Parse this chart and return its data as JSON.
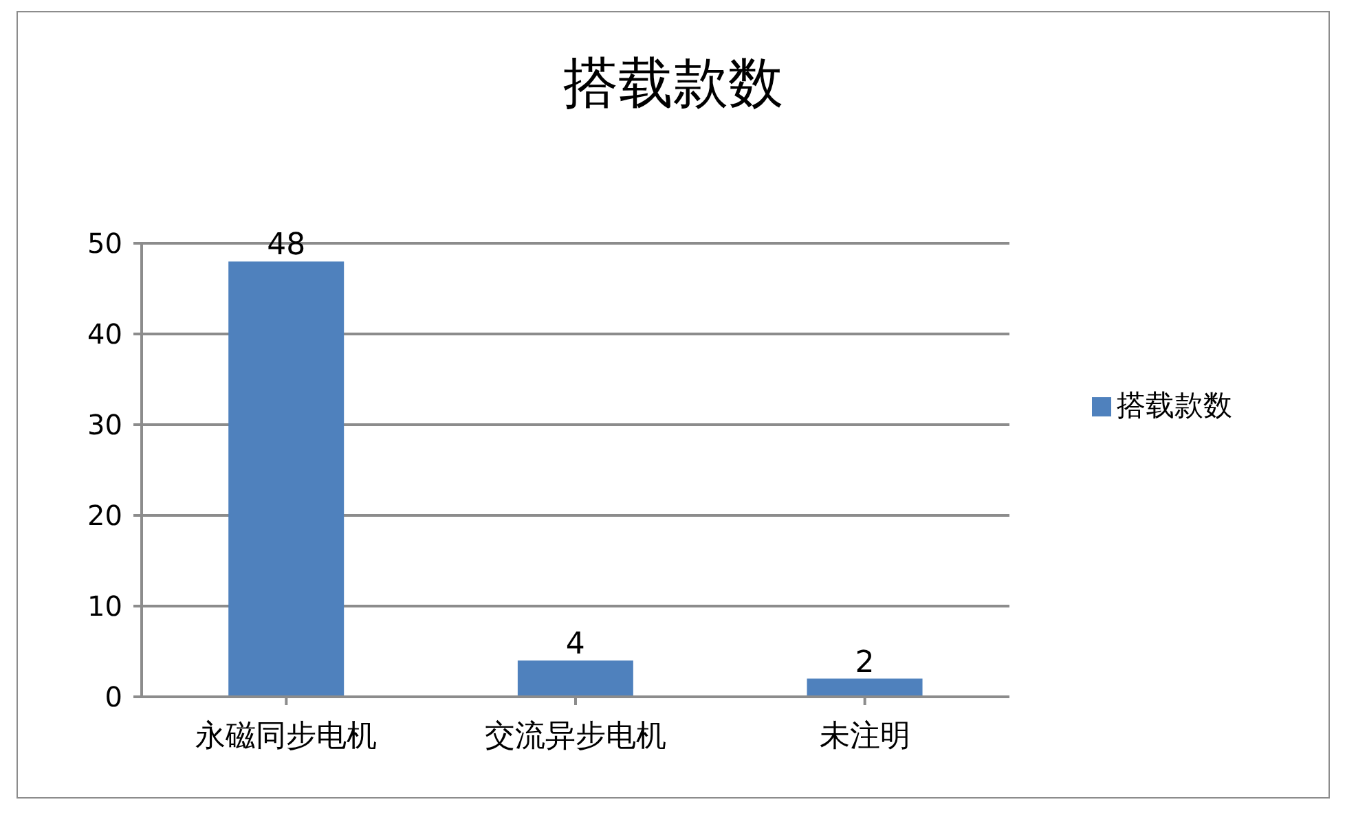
{
  "chart_data": {
    "type": "bar",
    "title": "搭载款数",
    "categories": [
      "永磁同步电机",
      "交流异步电机",
      "未注明"
    ],
    "series": [
      {
        "name": "搭载款数",
        "color": "#4f81bd",
        "values": [
          48,
          4,
          2
        ]
      }
    ],
    "ylim": [
      0,
      50
    ],
    "yticks": [
      0,
      10,
      20,
      30,
      40,
      50
    ],
    "grid": "y",
    "legend": "right",
    "data_labels": true
  }
}
